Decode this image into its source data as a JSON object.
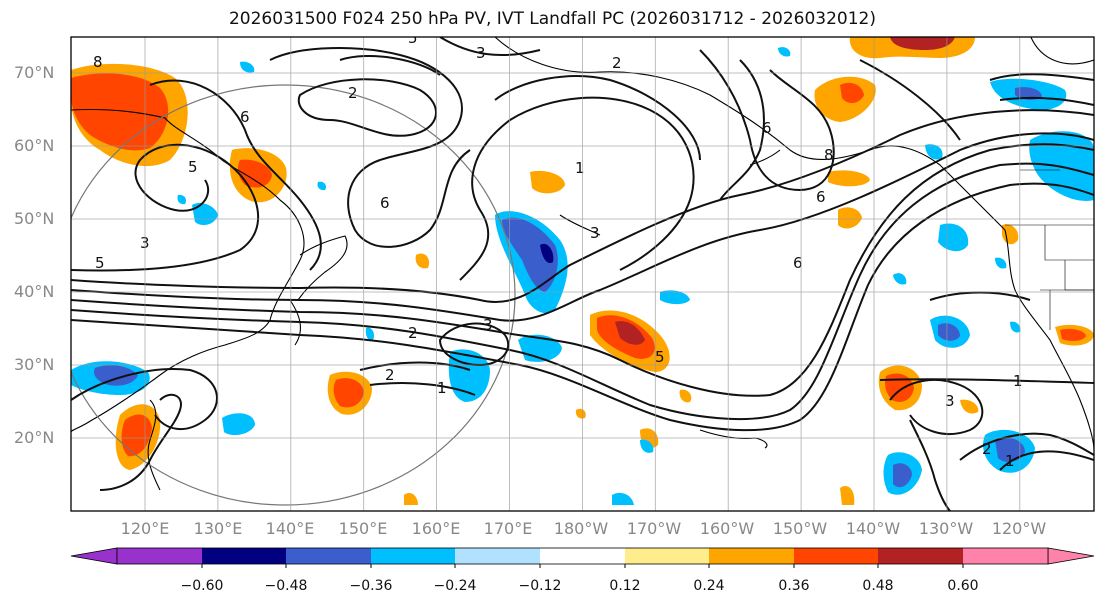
{
  "title": "2026031500 F024 250 hPa PV, IVT Landfall PC (2026031712 - 2026032012)",
  "map": {
    "lat_labels": [
      "70°N",
      "60°N",
      "50°N",
      "40°N",
      "30°N",
      "20°N"
    ],
    "lon_labels": [
      "120°E",
      "130°E",
      "140°E",
      "150°E",
      "160°E",
      "170°E",
      "180°W",
      "170°W",
      "160°W",
      "150°W",
      "140°W",
      "130°W",
      "120°W"
    ],
    "contour_labels": [
      "8",
      "5",
      "3",
      "2",
      "2",
      "6",
      "5",
      "5",
      "6",
      "3",
      "1",
      "3",
      "2",
      "1",
      "3",
      "5",
      "2",
      "6",
      "8",
      "6",
      "6",
      "1",
      "3",
      "2",
      "1"
    ]
  },
  "colorbar": {
    "ticks": [
      "−0.60",
      "−0.48",
      "−0.36",
      "−0.24",
      "−0.12",
      "0.12",
      "0.24",
      "0.36",
      "0.48",
      "0.60"
    ],
    "colors": [
      "#9932cc",
      "#000080",
      "#3a5fcd",
      "#00bfff",
      "#b0e2ff",
      "#ffffff",
      "#ffec8b",
      "#ffa500",
      "#ff4500",
      "#b22222",
      "#ff82ab"
    ]
  }
}
